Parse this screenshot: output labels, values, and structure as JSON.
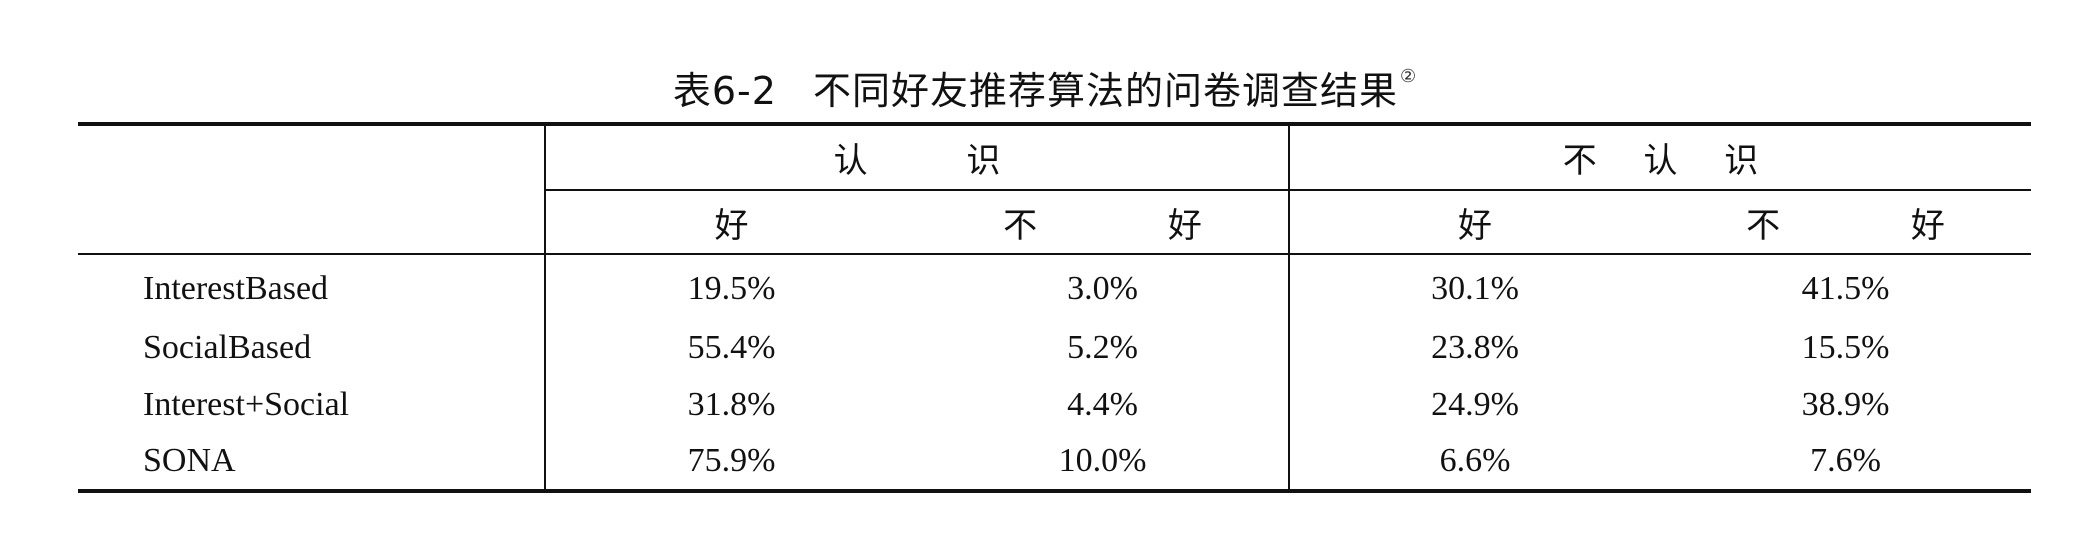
{
  "caption": {
    "number": "表6-2",
    "title": "不同好友推荐算法的问卷调查结果",
    "note_mark": "②"
  },
  "table": {
    "group_headers": [
      "认 识",
      "不 认 识"
    ],
    "sub_headers": [
      "好",
      "不 好",
      "好",
      "不 好"
    ],
    "rows": [
      {
        "label": "InterestBased",
        "values": [
          "19.5%",
          "3.0%",
          "30.1%",
          "41.5%"
        ]
      },
      {
        "label": "SocialBased",
        "values": [
          "55.4%",
          "5.2%",
          "23.8%",
          "15.5%"
        ]
      },
      {
        "label": "Interest+Social",
        "values": [
          "31.8%",
          "4.4%",
          "24.9%",
          "38.9%"
        ]
      },
      {
        "label": "SONA",
        "values": [
          "75.9%",
          "10.0%",
          "6.6%",
          "7.6%"
        ]
      }
    ]
  }
}
